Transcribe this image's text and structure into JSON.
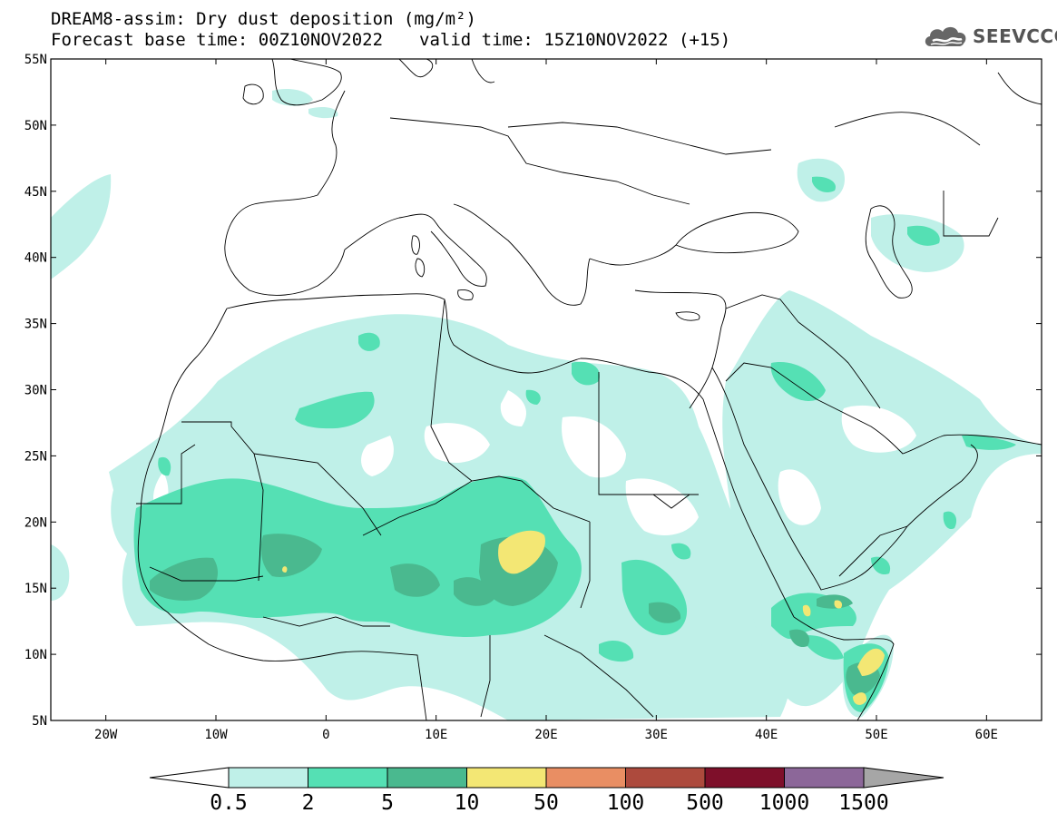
{
  "header": {
    "title_line1": "DREAM8-assim: Dry dust deposition (mg/m²)",
    "title_line2_base": "Forecast base time: 00Z10NOV2022",
    "title_line2_valid": "valid time: 15Z10NOV2022 (+15)",
    "logo_text": "SEEVCCC",
    "logo_icon": "cloud-icon"
  },
  "map": {
    "lon_range": [
      -25,
      65
    ],
    "lat_range": [
      5,
      55
    ],
    "lon_ticks": [
      {
        "value": -20,
        "label": "20W"
      },
      {
        "value": -10,
        "label": "10W"
      },
      {
        "value": 0,
        "label": "0"
      },
      {
        "value": 10,
        "label": "10E"
      },
      {
        "value": 20,
        "label": "20E"
      },
      {
        "value": 30,
        "label": "30E"
      },
      {
        "value": 40,
        "label": "40E"
      },
      {
        "value": 50,
        "label": "50E"
      },
      {
        "value": 60,
        "label": "60E"
      }
    ],
    "lat_ticks": [
      {
        "value": 55,
        "label": "55N"
      },
      {
        "value": 50,
        "label": "50N"
      },
      {
        "value": 45,
        "label": "45N"
      },
      {
        "value": 40,
        "label": "40N"
      },
      {
        "value": 35,
        "label": "35N"
      },
      {
        "value": 30,
        "label": "30N"
      },
      {
        "value": 25,
        "label": "25N"
      },
      {
        "value": 20,
        "label": "20N"
      },
      {
        "value": 15,
        "label": "15N"
      },
      {
        "value": 10,
        "label": "10N"
      },
      {
        "value": 5,
        "label": "5N"
      }
    ]
  },
  "colorbar": {
    "colors": [
      "#bff0e8",
      "#55e0b4",
      "#4ab98f",
      "#f3e774",
      "#e98e63",
      "#ad4a3d",
      "#7e0f2a",
      "#8c6799"
    ],
    "low_color": "#ffffff",
    "high_color": "#a6a6a6",
    "labels": [
      "0.5",
      "2",
      "5",
      "10",
      "50",
      "100",
      "500",
      "1000",
      "1500"
    ]
  },
  "dust_colors": {
    "level1": "#bff0e8",
    "level2": "#55e0b4",
    "level3": "#4ab98f",
    "level4": "#f3e774"
  }
}
